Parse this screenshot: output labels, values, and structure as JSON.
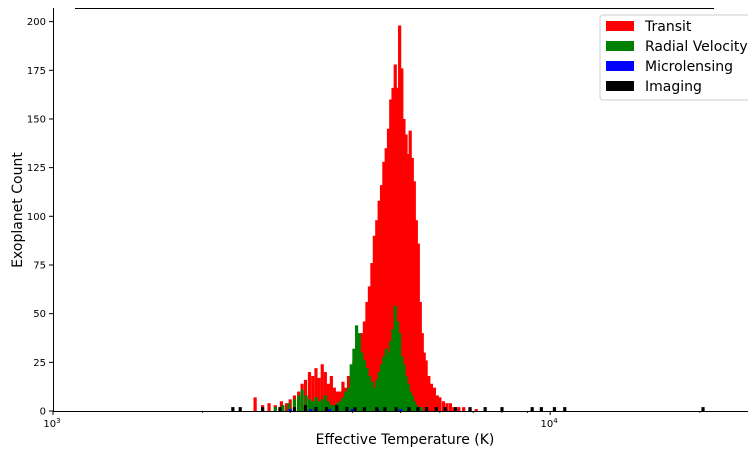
{
  "chart_data": {
    "type": "bar",
    "subtype": "histogram",
    "xscale": "log",
    "xlim": [
      1000,
      25000
    ],
    "ylim": [
      0,
      207
    ],
    "xlabel": "Effective Temperature (K)",
    "ylabel": "Exoplanet Count",
    "xticks": [
      {
        "value": 1000,
        "base": "10",
        "exp": "3"
      },
      {
        "value": 10000,
        "base": "10",
        "exp": "4"
      }
    ],
    "yticks": [
      "0",
      "25",
      "50",
      "75",
      "100",
      "125",
      "150",
      "175",
      "200"
    ],
    "grid": false,
    "legend_position": "top-right",
    "overlay_order": [
      "Transit",
      "Radial Velocity",
      "Microlensing",
      "Imaging"
    ],
    "series": [
      {
        "name": "Transit",
        "color": "#ff0000",
        "points": [
          [
            2550,
            7
          ],
          [
            2640,
            3
          ],
          [
            2720,
            4
          ],
          [
            2800,
            3
          ],
          [
            2880,
            5
          ],
          [
            2950,
            4
          ],
          [
            3000,
            6
          ],
          [
            3060,
            8
          ],
          [
            3120,
            10
          ],
          [
            3170,
            14
          ],
          [
            3220,
            16
          ],
          [
            3280,
            20
          ],
          [
            3330,
            18
          ],
          [
            3380,
            22
          ],
          [
            3430,
            17
          ],
          [
            3480,
            24
          ],
          [
            3530,
            20
          ],
          [
            3580,
            14
          ],
          [
            3630,
            18
          ],
          [
            3680,
            12
          ],
          [
            3730,
            10
          ],
          [
            3780,
            10
          ],
          [
            3830,
            15
          ],
          [
            3880,
            12
          ],
          [
            3930,
            18
          ],
          [
            3980,
            14
          ],
          [
            4030,
            26
          ],
          [
            4080,
            34
          ],
          [
            4130,
            22
          ],
          [
            4180,
            40
          ],
          [
            4230,
            46
          ],
          [
            4280,
            56
          ],
          [
            4330,
            64
          ],
          [
            4380,
            76
          ],
          [
            4430,
            90
          ],
          [
            4480,
            98
          ],
          [
            4530,
            108
          ],
          [
            4580,
            116
          ],
          [
            4630,
            128
          ],
          [
            4680,
            135
          ],
          [
            4730,
            145
          ],
          [
            4780,
            160
          ],
          [
            4830,
            166
          ],
          [
            4880,
            178
          ],
          [
            4930,
            166
          ],
          [
            4980,
            198
          ],
          [
            5030,
            176
          ],
          [
            5080,
            150
          ],
          [
            5130,
            142
          ],
          [
            5180,
            132
          ],
          [
            5230,
            144
          ],
          [
            5280,
            130
          ],
          [
            5330,
            118
          ],
          [
            5380,
            98
          ],
          [
            5430,
            86
          ],
          [
            5480,
            56
          ],
          [
            5530,
            40
          ],
          [
            5580,
            30
          ],
          [
            5630,
            26
          ],
          [
            5700,
            18
          ],
          [
            5770,
            14
          ],
          [
            5850,
            12
          ],
          [
            5930,
            8
          ],
          [
            6000,
            7
          ],
          [
            6100,
            5
          ],
          [
            6200,
            4
          ],
          [
            6300,
            4
          ],
          [
            6400,
            2
          ],
          [
            6550,
            2
          ],
          [
            6700,
            2
          ],
          [
            6900,
            1
          ],
          [
            7100,
            1
          ]
        ]
      },
      {
        "name": "Radial Velocity",
        "color": "#008000",
        "points": [
          [
            2800,
            2
          ],
          [
            2900,
            3
          ],
          [
            2980,
            4
          ],
          [
            3060,
            6
          ],
          [
            3120,
            8
          ],
          [
            3170,
            11
          ],
          [
            3230,
            8
          ],
          [
            3280,
            6
          ],
          [
            3330,
            5
          ],
          [
            3380,
            7
          ],
          [
            3430,
            5
          ],
          [
            3480,
            6
          ],
          [
            3530,
            8
          ],
          [
            3580,
            5
          ],
          [
            3630,
            3
          ],
          [
            3680,
            3
          ],
          [
            3730,
            4
          ],
          [
            3780,
            5
          ],
          [
            3830,
            7
          ],
          [
            3880,
            10
          ],
          [
            3930,
            12
          ],
          [
            3980,
            24
          ],
          [
            4030,
            32
          ],
          [
            4080,
            44
          ],
          [
            4130,
            40
          ],
          [
            4180,
            30
          ],
          [
            4230,
            26
          ],
          [
            4280,
            22
          ],
          [
            4330,
            18
          ],
          [
            4380,
            15
          ],
          [
            4430,
            12
          ],
          [
            4480,
            16
          ],
          [
            4530,
            20
          ],
          [
            4580,
            24
          ],
          [
            4630,
            28
          ],
          [
            4680,
            32
          ],
          [
            4730,
            30
          ],
          [
            4780,
            36
          ],
          [
            4830,
            42
          ],
          [
            4880,
            54
          ],
          [
            4930,
            46
          ],
          [
            4980,
            40
          ],
          [
            5030,
            28
          ],
          [
            5080,
            24
          ],
          [
            5130,
            18
          ],
          [
            5180,
            14
          ],
          [
            5230,
            10
          ],
          [
            5280,
            8
          ],
          [
            5330,
            5
          ],
          [
            5380,
            3
          ],
          [
            5430,
            2
          ],
          [
            5500,
            2
          ]
        ]
      },
      {
        "name": "Microlensing",
        "color": "#0000ff",
        "points": [
          [
            3000,
            1
          ],
          [
            3300,
            1
          ],
          [
            3600,
            1
          ],
          [
            4000,
            1
          ],
          [
            4500,
            1
          ],
          [
            5000,
            1
          ]
        ]
      },
      {
        "name": "Imaging",
        "color": "#000000",
        "points": [
          [
            2300,
            2
          ],
          [
            2380,
            2
          ],
          [
            2640,
            2
          ],
          [
            2860,
            2
          ],
          [
            3060,
            2
          ],
          [
            3220,
            3
          ],
          [
            3380,
            2
          ],
          [
            3550,
            2
          ],
          [
            3720,
            3
          ],
          [
            3900,
            2
          ],
          [
            4050,
            2
          ],
          [
            4230,
            2
          ],
          [
            4480,
            2
          ],
          [
            4650,
            2
          ],
          [
            4900,
            2
          ],
          [
            5200,
            2
          ],
          [
            5420,
            2
          ],
          [
            5640,
            2
          ],
          [
            5900,
            2
          ],
          [
            6150,
            2
          ],
          [
            6450,
            2
          ],
          [
            6900,
            2
          ],
          [
            7400,
            2
          ],
          [
            8000,
            2
          ],
          [
            9200,
            2
          ],
          [
            9600,
            2
          ],
          [
            10200,
            2
          ],
          [
            10700,
            2
          ],
          [
            20300,
            2
          ]
        ]
      }
    ]
  }
}
